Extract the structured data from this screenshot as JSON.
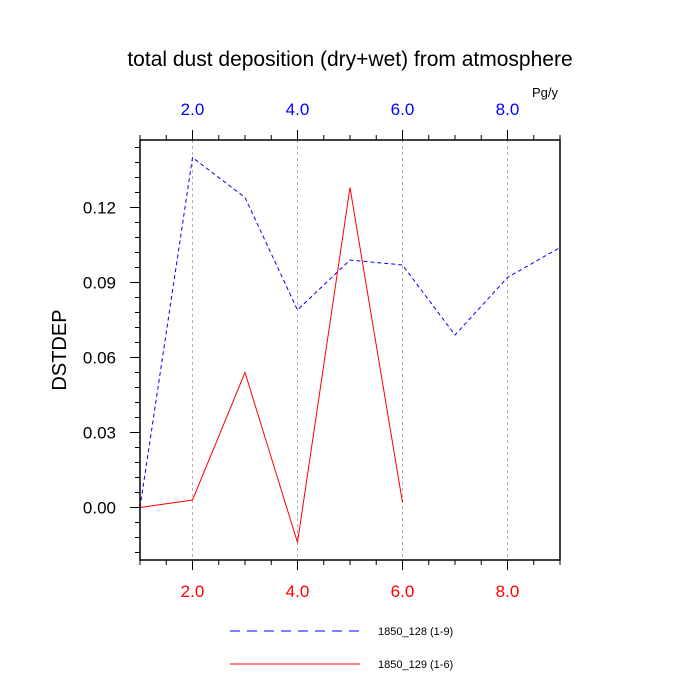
{
  "chart_data": {
    "type": "line",
    "title": "total dust deposition (dry+wet) from atmosphere",
    "ylabel": "DSTDEP",
    "top_axis_unit": "Pg/y",
    "xlim": [
      1,
      9
    ],
    "ylim": [
      -0.021,
      0.147
    ],
    "x_ticks": [
      2,
      4,
      6,
      8
    ],
    "x_tick_labels": [
      "2.0",
      "4.0",
      "6.0",
      "8.0"
    ],
    "y_ticks": [
      0,
      0.03,
      0.06,
      0.09,
      0.12
    ],
    "y_tick_labels": [
      "0.00",
      "0.03",
      "0.06",
      "0.09",
      "0.12"
    ],
    "grid": "vertical dashed at x ticks",
    "legend_position": "bottom",
    "colors": {
      "bottom_axis": "#ff0000",
      "top_axis": "#0000ff"
    },
    "series": [
      {
        "name": "1850_128 (1-9)",
        "color": "#0000ff",
        "style": "dashed",
        "x": [
          1,
          2,
          3,
          4,
          5,
          6,
          7,
          8,
          9
        ],
        "values": [
          0.0,
          0.14,
          0.124,
          0.079,
          0.099,
          0.097,
          0.069,
          0.092,
          0.104
        ]
      },
      {
        "name": "1850_129 (1-6)",
        "color": "#ff0000",
        "style": "solid",
        "x": [
          1,
          2,
          3,
          4,
          5,
          6
        ],
        "values": [
          0.0,
          0.003,
          0.054,
          -0.014,
          0.128,
          0.002
        ]
      }
    ]
  }
}
